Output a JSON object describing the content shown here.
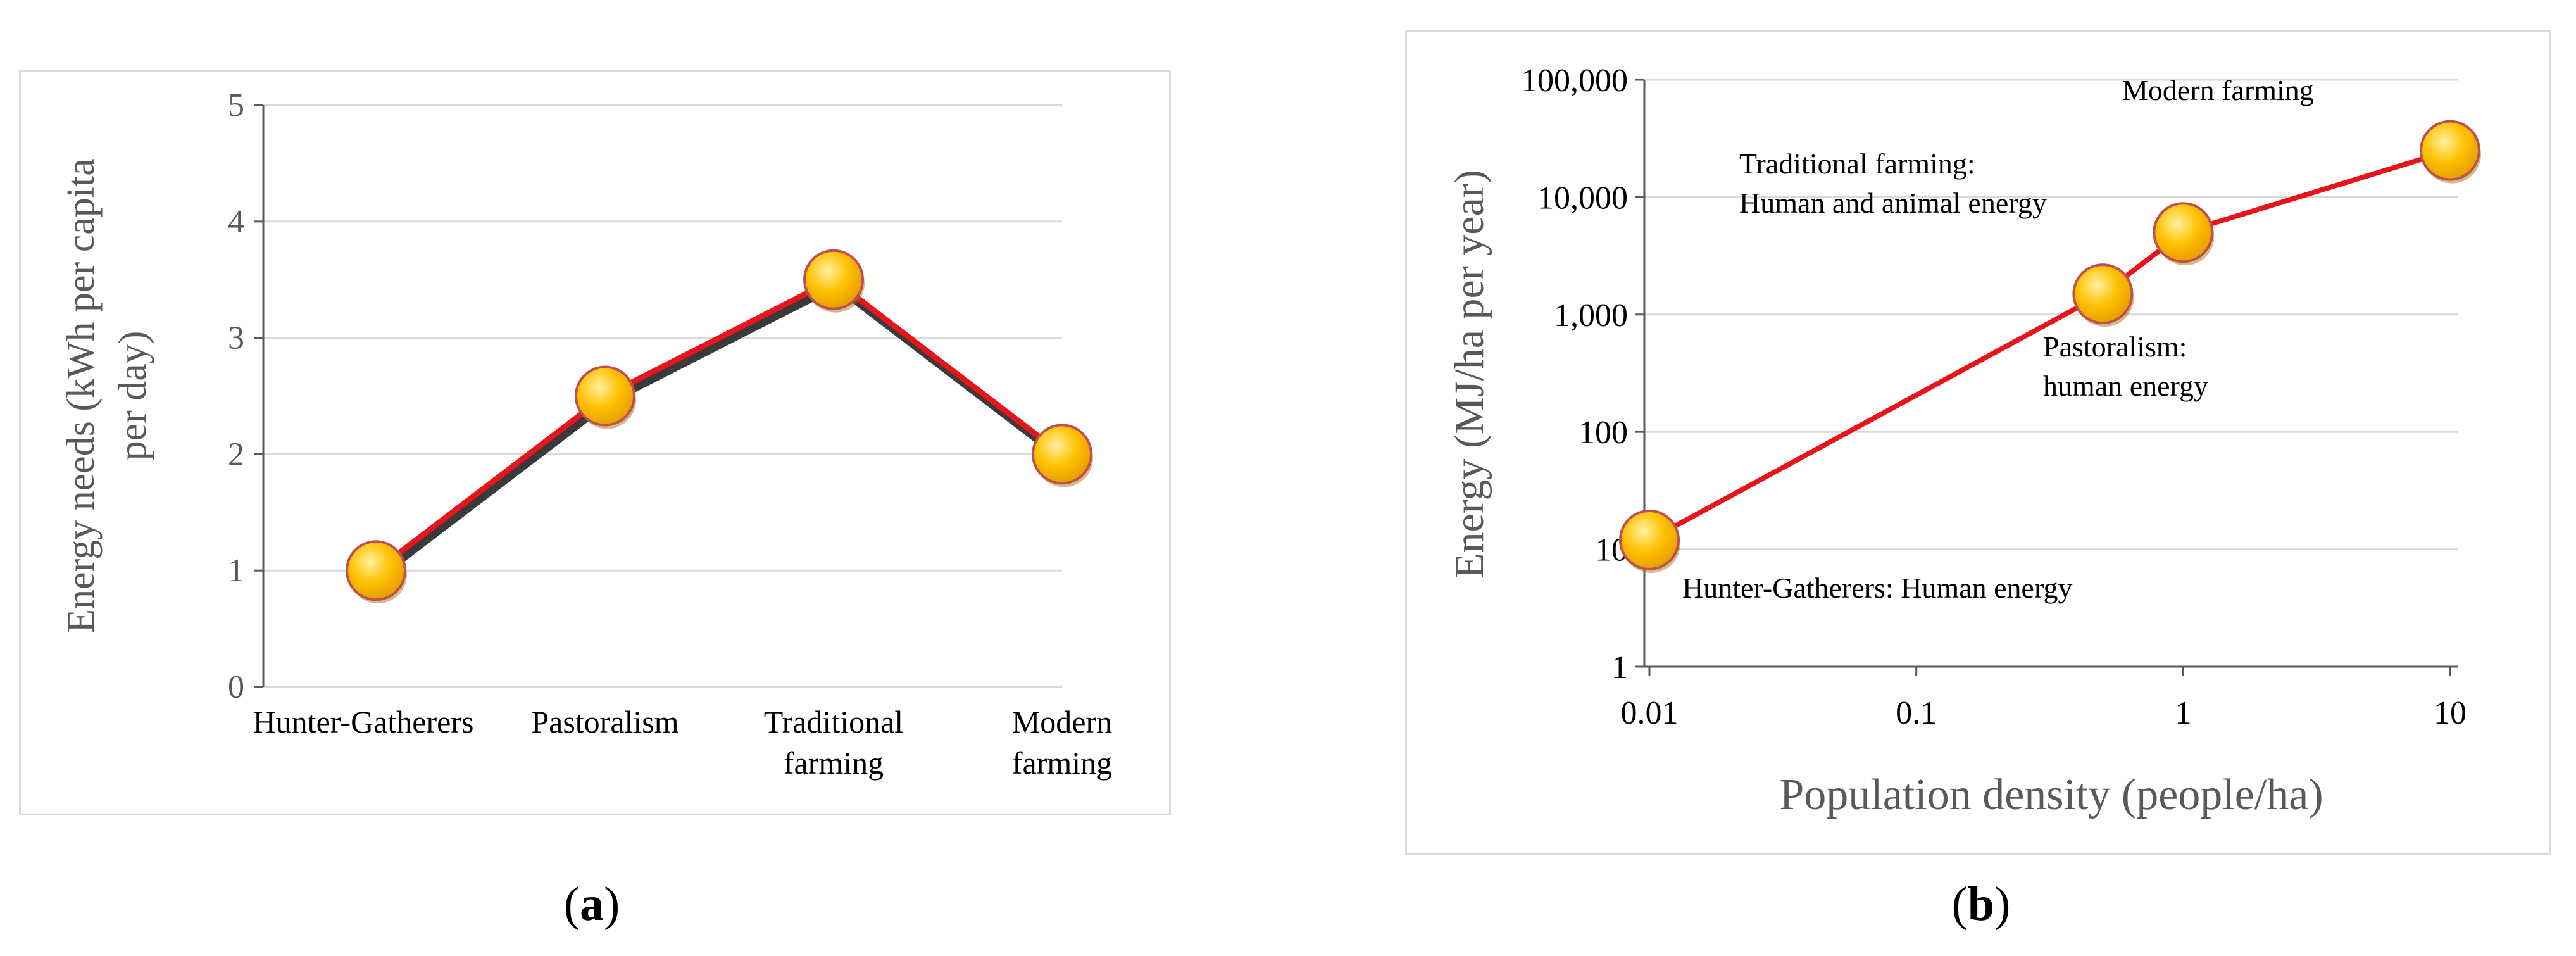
{
  "colors": {
    "line": "#e8141c",
    "shadow": "#3a3a3a",
    "marker_fill": "#ffc000",
    "marker_edge": "#c0504d",
    "grid": "#d9d9d9",
    "axis": "#595959",
    "text": "#000000",
    "xlabel_text": "#595959"
  },
  "panels": [
    {
      "label_open": "(",
      "label_letter": "a",
      "label_close": ")"
    },
    {
      "label_open": "(",
      "label_letter": "b",
      "label_close": ")"
    }
  ],
  "chart_data": [
    {
      "type": "line",
      "categories": [
        "Hunter-Gatherers",
        "Pastoralism",
        "Traditional farming",
        "Modern farming"
      ],
      "category_lines": [
        [
          "Hunter-Gatherers"
        ],
        [
          "Pastoralism"
        ],
        [
          "Traditional",
          "farming"
        ],
        [
          "Modern",
          "farming"
        ]
      ],
      "values": [
        1,
        2.5,
        3.5,
        2
      ],
      "ylabel_lines": [
        "Energy needs (kWh per capita",
        "per day)"
      ],
      "xlabel": "",
      "ylim": [
        0,
        5
      ],
      "yticks": [
        0,
        1,
        2,
        3,
        4,
        5
      ],
      "grid": true
    },
    {
      "type": "line",
      "x_scale": "log",
      "y_scale": "log",
      "x": [
        0.01,
        0.5,
        1,
        10
      ],
      "y": [
        12,
        1500,
        5000,
        25000
      ],
      "xlabel": "Population density (people/ha)",
      "ylabel": "Energy (MJ/ha per year)",
      "xlim": [
        0.01,
        10
      ],
      "ylim": [
        1,
        100000
      ],
      "xticks": [
        "0.01",
        "0.1",
        "1",
        "10"
      ],
      "yticks": [
        "1",
        "10",
        "100",
        "1,000",
        "10,000",
        "100,000"
      ],
      "grid": true,
      "annotations": [
        {
          "lines": [
            "Hunter-Gatherers: Human energy"
          ]
        },
        {
          "lines": [
            "Pastoralism:",
            "human energy"
          ]
        },
        {
          "lines": [
            "Traditional farming:",
            "Human and animal energy"
          ]
        },
        {
          "lines": [
            "Modern farming"
          ]
        }
      ]
    }
  ]
}
